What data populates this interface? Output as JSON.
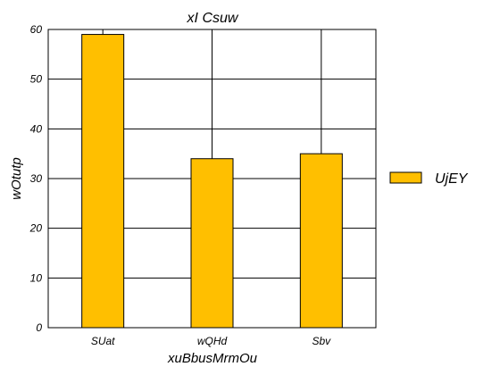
{
  "chart_data": {
    "type": "bar",
    "title": "xI Csuw",
    "xlabel": "xuBbusMrmOu",
    "ylabel": "wOtutp",
    "categories": [
      "SUat",
      "wQHd",
      "Sbv"
    ],
    "series": [
      {
        "name": "UjEY",
        "values": [
          59,
          34,
          35
        ],
        "color": "#FFBF00"
      }
    ],
    "ylim": [
      0,
      60
    ],
    "yticks": [
      0,
      10,
      20,
      30,
      40,
      50,
      60
    ],
    "grid": true,
    "legend_position": "right"
  }
}
